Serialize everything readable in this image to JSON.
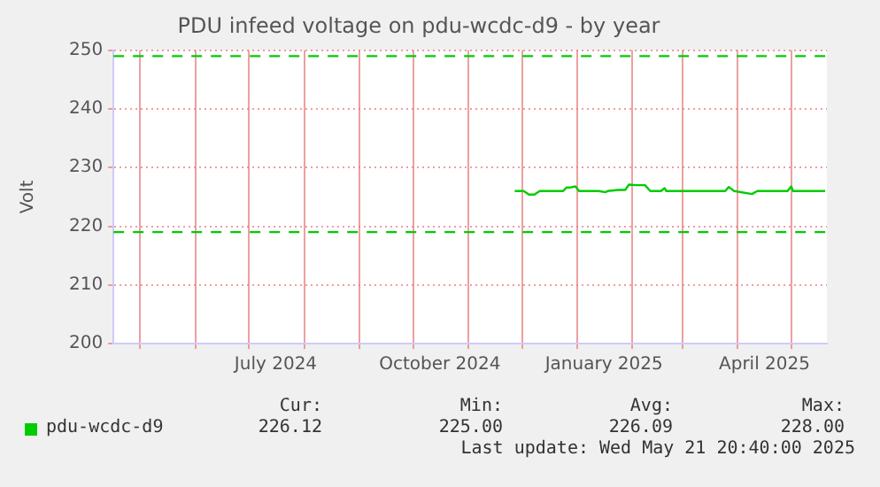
{
  "chart_data": {
    "type": "line",
    "title": "PDU infeed voltage on pdu-wcdc-d9 - by year",
    "ylabel": "Volt",
    "x": [
      "2024-11-27",
      "2024-12-02",
      "2024-12-05",
      "2024-12-08",
      "2024-12-11",
      "2024-12-24",
      "2024-12-26",
      "2024-12-28",
      "2024-12-31",
      "2025-01-02",
      "2025-01-13",
      "2025-01-17",
      "2025-01-18",
      "2025-01-24",
      "2025-01-28",
      "2025-01-30",
      "2025-02-03",
      "2025-02-08",
      "2025-02-11",
      "2025-02-17",
      "2025-02-19",
      "2025-02-20",
      "2025-03-25",
      "2025-03-27",
      "2025-03-30",
      "2025-04-09",
      "2025-04-12",
      "2025-04-29",
      "2025-05-01",
      "2025-05-02",
      "2025-05-20"
    ],
    "series": [
      {
        "name": "pdu-wcdc-d9",
        "color": "#00cc00",
        "values": [
          226,
          226,
          225.4,
          225.4,
          226,
          226,
          226.6,
          226.6,
          226.8,
          226,
          226,
          225.8,
          226,
          226.2,
          226.2,
          227.1,
          227,
          227,
          226,
          226,
          226.5,
          226,
          226,
          226.7,
          226,
          225.5,
          226,
          226,
          226.8,
          226,
          226
        ]
      }
    ],
    "xlim": [
      "2024-04-16",
      "2025-05-21"
    ],
    "xticks": [
      {
        "value": "2024-05-01",
        "label": null
      },
      {
        "value": "2024-06-01",
        "label": null
      },
      {
        "value": "2024-07-01",
        "label": null
      },
      {
        "value": "2024-07-16",
        "label": "July 2024"
      },
      {
        "value": "2024-08-01",
        "label": null
      },
      {
        "value": "2024-09-01",
        "label": null
      },
      {
        "value": "2024-10-01",
        "label": null
      },
      {
        "value": "2024-10-16",
        "label": "October 2024"
      },
      {
        "value": "2024-11-01",
        "label": null
      },
      {
        "value": "2024-12-01",
        "label": null
      },
      {
        "value": "2025-01-01",
        "label": null
      },
      {
        "value": "2025-01-16",
        "label": "January 2025"
      },
      {
        "value": "2025-02-01",
        "label": null
      },
      {
        "value": "2025-03-01",
        "label": null
      },
      {
        "value": "2025-04-01",
        "label": null
      },
      {
        "value": "2025-04-16",
        "label": "April 2025"
      },
      {
        "value": "2025-05-01",
        "label": null
      }
    ],
    "ylim": [
      200,
      250
    ],
    "yticks": [
      200,
      210,
      220,
      230,
      240,
      250
    ],
    "ref_lines": [
      {
        "axis": "y",
        "value": 249,
        "color": "#00cc00",
        "line_style": "dashed"
      },
      {
        "axis": "y",
        "value": 219,
        "color": "#00cc00",
        "line_style": "dashed"
      }
    ],
    "grid": true,
    "legend": "bottom left",
    "marker": "none",
    "line_style": "solid",
    "annotations": [
      "Cur:",
      "Min:",
      "Avg:",
      "Max:",
      "226.12",
      "225.00",
      "226.09",
      "228.00",
      "Last update: Wed May 21 20:40:00 2025"
    ]
  }
}
